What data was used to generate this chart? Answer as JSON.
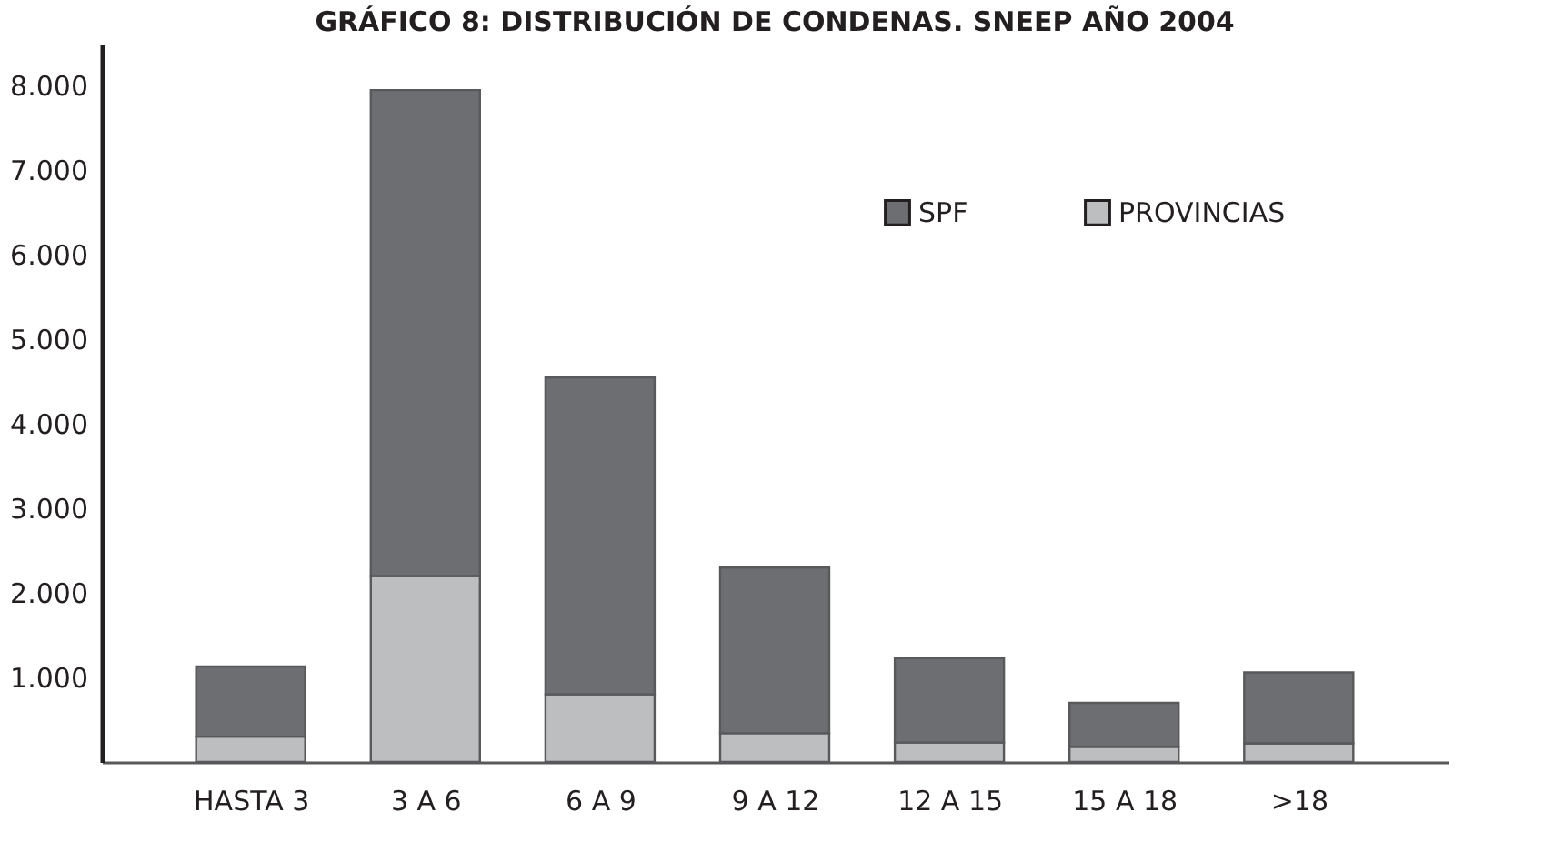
{
  "chart_data": {
    "type": "bar",
    "title": "GRÁFICO 8: DISTRIBUCIÓN DE CONDENAS. SNEEP AÑO 2004",
    "categories": [
      "HASTA 3",
      "3 A 6",
      "6 A 9",
      "9 A 12",
      "12 A 15",
      "15 A 18",
      ">18"
    ],
    "stacked": true,
    "series": [
      {
        "name": "PROVINCIAS",
        "color": "#bcbec0",
        "values": [
          300,
          2200,
          800,
          340,
          230,
          180,
          220
        ]
      },
      {
        "name": "SPF",
        "color": "#6d6e71",
        "values": [
          830,
          5750,
          3750,
          1960,
          1000,
          520,
          840
        ]
      }
    ],
    "ylim": [
      0,
      8500
    ],
    "yticks": [
      {
        "value": 0,
        "label": null
      },
      {
        "value": 1000,
        "label": "1.000"
      },
      {
        "value": 2000,
        "label": "2.000"
      },
      {
        "value": 3000,
        "label": "3.000"
      },
      {
        "value": 4000,
        "label": "4.000"
      },
      {
        "value": 5000,
        "label": "5.000"
      },
      {
        "value": 6000,
        "label": "6.000"
      },
      {
        "value": 7000,
        "label": "7.000"
      },
      {
        "value": 8000,
        "label": "8.000"
      }
    ],
    "grid": false,
    "legend": "top right"
  }
}
